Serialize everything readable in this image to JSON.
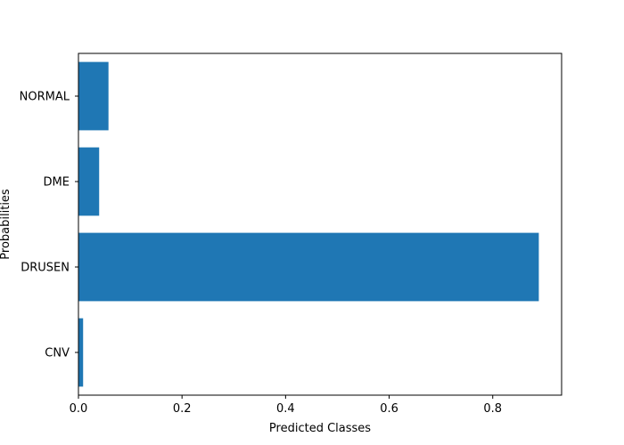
{
  "chart_data": {
    "type": "bar",
    "orientation": "horizontal",
    "title": "",
    "xlabel": "Predicted Classes",
    "ylabel": "Probabilities",
    "categories": [
      "CNV",
      "DRUSEN",
      "DME",
      "NORMAL"
    ],
    "values": [
      0.009,
      0.889,
      0.04,
      0.058
    ],
    "xlim": [
      0,
      0.933
    ],
    "xticks": [
      0.0,
      0.2,
      0.4,
      0.6,
      0.8
    ],
    "xtick_labels": [
      "0.0",
      "0.2",
      "0.4",
      "0.6",
      "0.8"
    ],
    "grid": false,
    "legend": "none",
    "colors": {
      "bar": "#1f77b4",
      "axes": "#000000",
      "background": "#ffffff"
    }
  }
}
